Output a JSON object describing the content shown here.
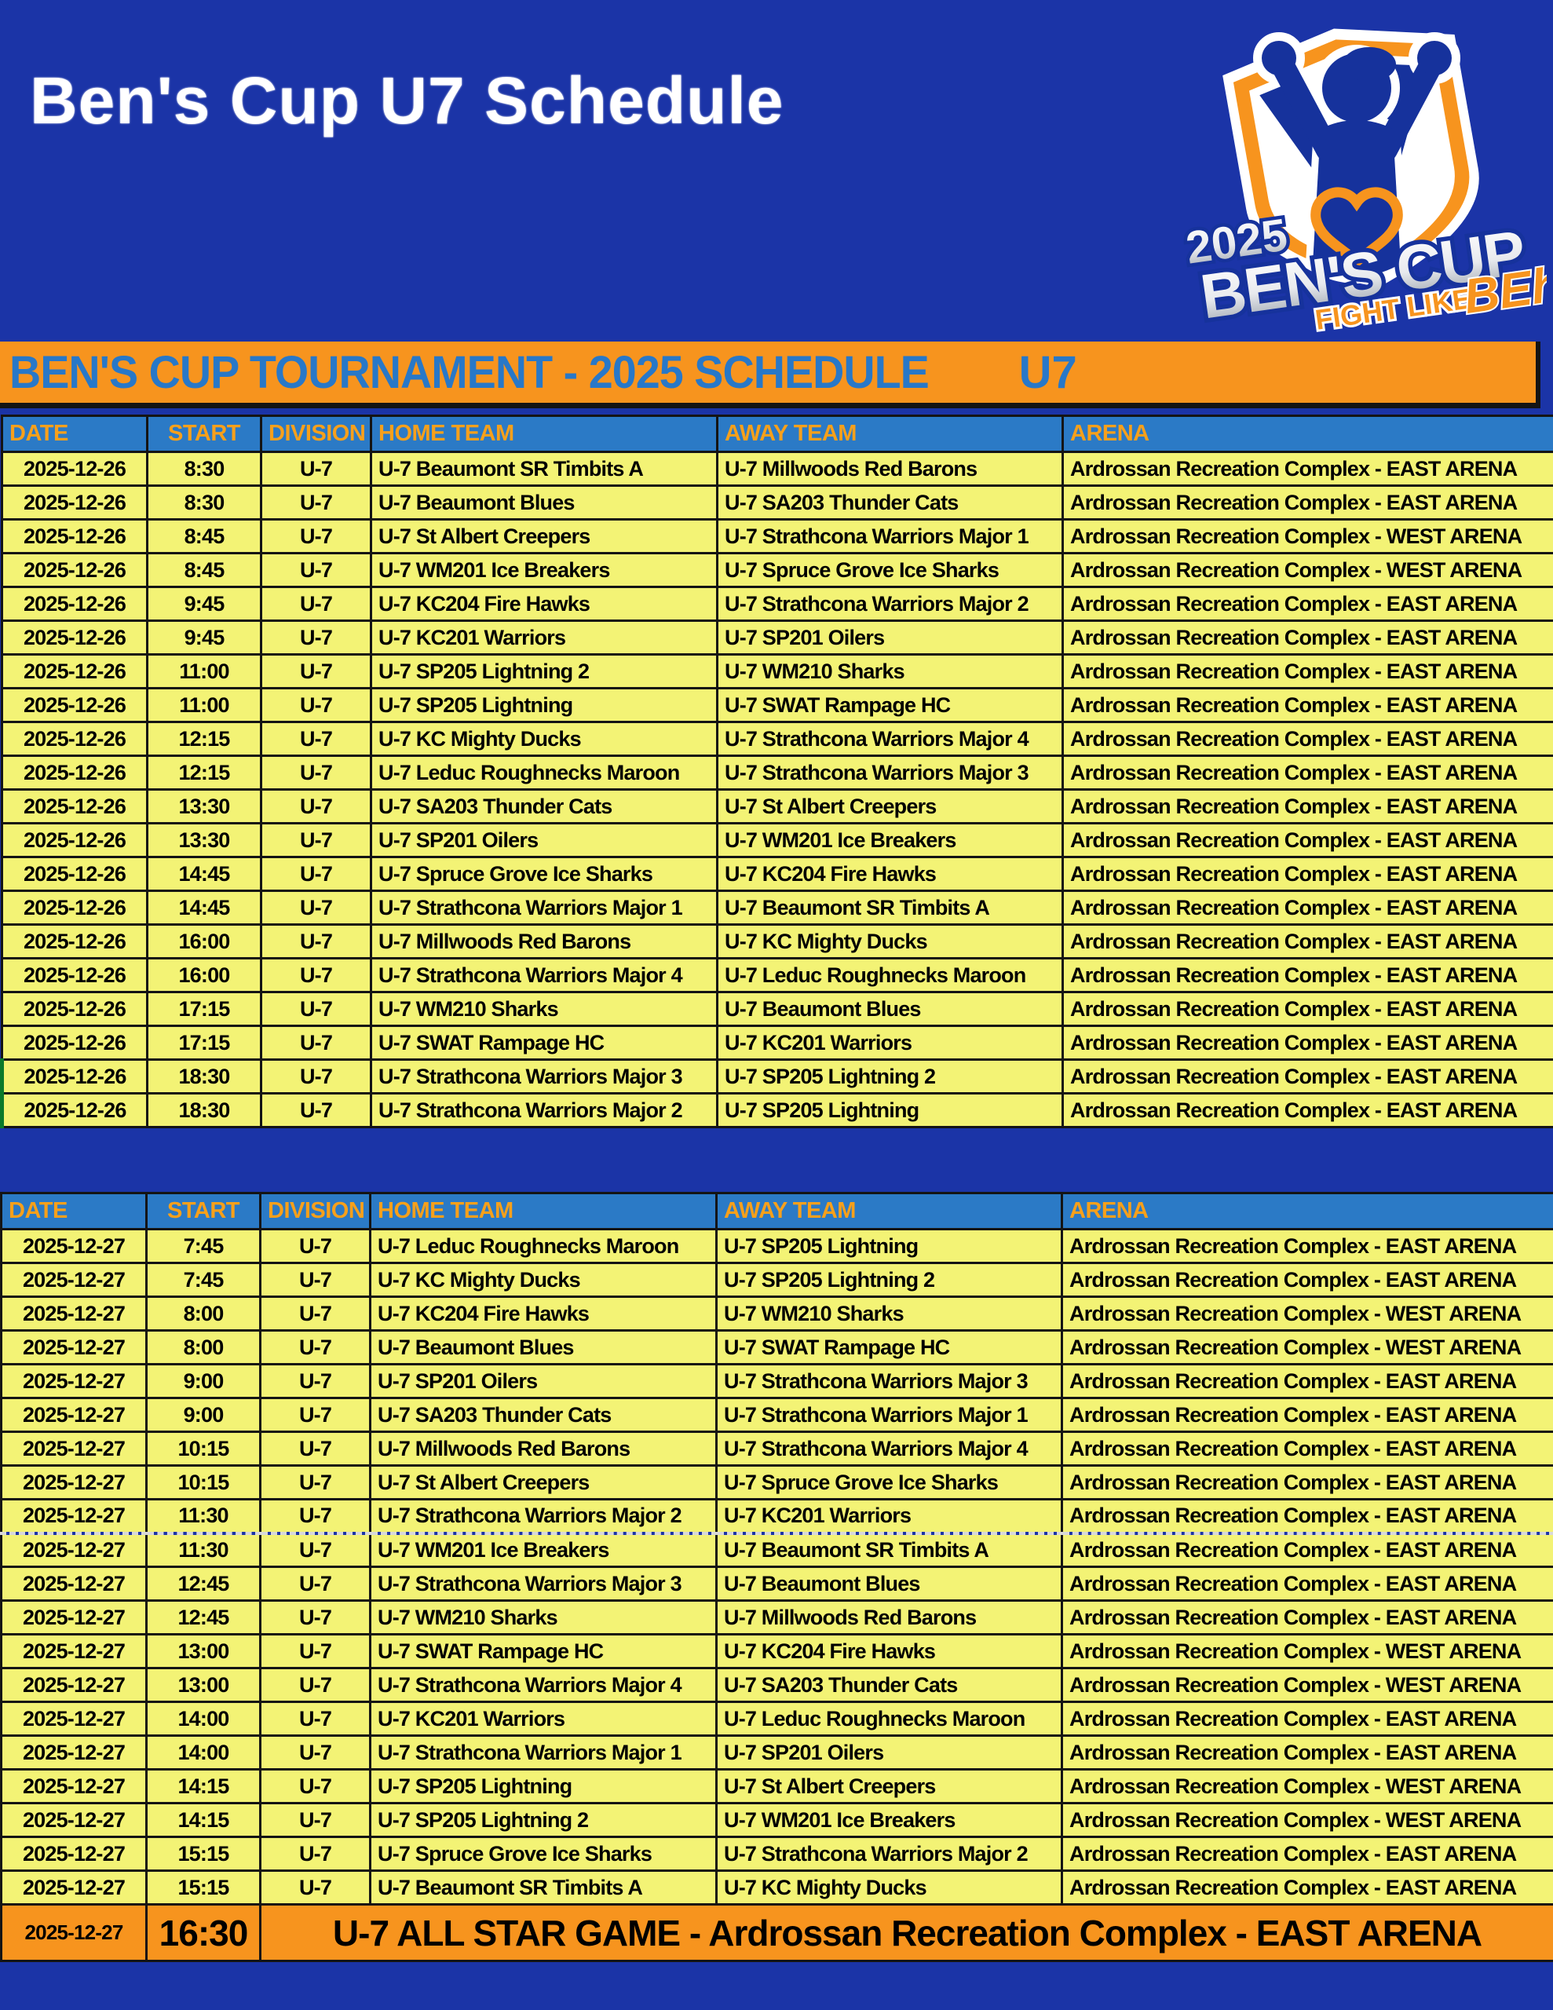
{
  "title": "Ben's Cup U7 Schedule",
  "logo": {
    "year": "2025",
    "name": "BEN'S CUP",
    "tagline": "FIGHT LIKE",
    "signature": "BEh"
  },
  "banner": {
    "title": "BEN'S CUP TOURNAMENT - 2025 SCHEDULE",
    "division": "U7"
  },
  "columns": [
    "DATE",
    "START",
    "DIVISION",
    "HOME TEAM",
    "AWAY TEAM",
    "ARENA"
  ],
  "tables": [
    {
      "name": "day1",
      "green_edge_rows": [
        18,
        19
      ],
      "rows": [
        [
          "2025-12-26",
          "8:30",
          "U-7",
          "U-7 Beaumont SR Timbits A",
          "U-7 Millwoods Red Barons",
          "Ardrossan Recreation Complex - EAST ARENA"
        ],
        [
          "2025-12-26",
          "8:30",
          "U-7",
          "U-7 Beaumont Blues",
          "U-7 SA203 Thunder Cats",
          "Ardrossan Recreation Complex - EAST ARENA"
        ],
        [
          "2025-12-26",
          "8:45",
          "U-7",
          "U-7 St Albert Creepers",
          "U-7 Strathcona Warriors Major 1",
          "Ardrossan Recreation Complex - WEST ARENA"
        ],
        [
          "2025-12-26",
          "8:45",
          "U-7",
          "U-7 WM201 Ice Breakers",
          "U-7 Spruce Grove Ice Sharks",
          "Ardrossan Recreation Complex - WEST ARENA"
        ],
        [
          "2025-12-26",
          "9:45",
          "U-7",
          "U-7 KC204 Fire Hawks",
          "U-7 Strathcona Warriors Major 2",
          "Ardrossan Recreation Complex - EAST ARENA"
        ],
        [
          "2025-12-26",
          "9:45",
          "U-7",
          "U-7 KC201 Warriors",
          "U-7 SP201 Oilers",
          "Ardrossan Recreation Complex - EAST ARENA"
        ],
        [
          "2025-12-26",
          "11:00",
          "U-7",
          "U-7 SP205 Lightning 2",
          "U-7 WM210 Sharks",
          "Ardrossan Recreation Complex - EAST ARENA"
        ],
        [
          "2025-12-26",
          "11:00",
          "U-7",
          "U-7 SP205 Lightning",
          "U-7 SWAT Rampage HC",
          "Ardrossan Recreation Complex - EAST ARENA"
        ],
        [
          "2025-12-26",
          "12:15",
          "U-7",
          "U-7 KC Mighty Ducks",
          "U-7 Strathcona Warriors Major 4",
          "Ardrossan Recreation Complex - EAST ARENA"
        ],
        [
          "2025-12-26",
          "12:15",
          "U-7",
          "U-7 Leduc Roughnecks Maroon",
          "U-7 Strathcona Warriors Major 3",
          "Ardrossan Recreation Complex - EAST ARENA"
        ],
        [
          "2025-12-26",
          "13:30",
          "U-7",
          "U-7 SA203 Thunder Cats",
          "U-7 St Albert Creepers",
          "Ardrossan Recreation Complex - EAST ARENA"
        ],
        [
          "2025-12-26",
          "13:30",
          "U-7",
          "U-7 SP201 Oilers",
          "U-7 WM201 Ice Breakers",
          "Ardrossan Recreation Complex - EAST ARENA"
        ],
        [
          "2025-12-26",
          "14:45",
          "U-7",
          "U-7 Spruce Grove Ice Sharks",
          "U-7 KC204 Fire Hawks",
          "Ardrossan Recreation Complex - EAST ARENA"
        ],
        [
          "2025-12-26",
          "14:45",
          "U-7",
          "U-7 Strathcona Warriors Major 1",
          "U-7 Beaumont SR Timbits A",
          "Ardrossan Recreation Complex - EAST ARENA"
        ],
        [
          "2025-12-26",
          "16:00",
          "U-7",
          "U-7 Millwoods Red Barons",
          "U-7 KC Mighty Ducks",
          "Ardrossan Recreation Complex - EAST ARENA"
        ],
        [
          "2025-12-26",
          "16:00",
          "U-7",
          "U-7 Strathcona Warriors Major 4",
          "U-7 Leduc Roughnecks Maroon",
          "Ardrossan Recreation Complex - EAST ARENA"
        ],
        [
          "2025-12-26",
          "17:15",
          "U-7",
          "U-7 WM210 Sharks",
          "U-7 Beaumont Blues",
          "Ardrossan Recreation Complex - EAST ARENA"
        ],
        [
          "2025-12-26",
          "17:15",
          "U-7",
          "U-7 SWAT Rampage HC",
          "U-7 KC201 Warriors",
          "Ardrossan Recreation Complex - EAST ARENA"
        ],
        [
          "2025-12-26",
          "18:30",
          "U-7",
          "U-7 Strathcona Warriors Major 3",
          "U-7 SP205 Lightning 2",
          "Ardrossan Recreation Complex - EAST ARENA"
        ],
        [
          "2025-12-26",
          "18:30",
          "U-7",
          "U-7 Strathcona Warriors Major 2",
          "U-7 SP205 Lightning",
          "Ardrossan Recreation Complex - EAST ARENA"
        ]
      ]
    },
    {
      "name": "day2",
      "page_break_above_row": 9,
      "rows": [
        [
          "2025-12-27",
          "7:45",
          "U-7",
          "U-7 Leduc Roughnecks Maroon",
          "U-7 SP205 Lightning",
          "Ardrossan Recreation Complex - EAST ARENA"
        ],
        [
          "2025-12-27",
          "7:45",
          "U-7",
          "U-7 KC Mighty Ducks",
          "U-7 SP205 Lightning 2",
          "Ardrossan Recreation Complex - EAST ARENA"
        ],
        [
          "2025-12-27",
          "8:00",
          "U-7",
          "U-7 KC204 Fire Hawks",
          "U-7 WM210 Sharks",
          "Ardrossan Recreation Complex - WEST ARENA"
        ],
        [
          "2025-12-27",
          "8:00",
          "U-7",
          "U-7 Beaumont Blues",
          "U-7 SWAT Rampage HC",
          "Ardrossan Recreation Complex - WEST ARENA"
        ],
        [
          "2025-12-27",
          "9:00",
          "U-7",
          "U-7 SP201 Oilers",
          "U-7 Strathcona Warriors Major 3",
          "Ardrossan Recreation Complex - EAST ARENA"
        ],
        [
          "2025-12-27",
          "9:00",
          "U-7",
          "U-7 SA203 Thunder Cats",
          "U-7 Strathcona Warriors Major 1",
          "Ardrossan Recreation Complex - EAST ARENA"
        ],
        [
          "2025-12-27",
          "10:15",
          "U-7",
          "U-7 Millwoods Red Barons",
          "U-7 Strathcona Warriors Major 4",
          "Ardrossan Recreation Complex - EAST ARENA"
        ],
        [
          "2025-12-27",
          "10:15",
          "U-7",
          "U-7 St Albert Creepers",
          "U-7 Spruce Grove Ice Sharks",
          "Ardrossan Recreation Complex - EAST ARENA"
        ],
        [
          "2025-12-27",
          "11:30",
          "U-7",
          "U-7 Strathcona Warriors Major 2",
          "U-7 KC201 Warriors",
          "Ardrossan Recreation Complex - EAST ARENA"
        ],
        [
          "2025-12-27",
          "11:30",
          "U-7",
          "U-7 WM201 Ice Breakers",
          "U-7 Beaumont SR Timbits A",
          "Ardrossan Recreation Complex - EAST ARENA"
        ],
        [
          "2025-12-27",
          "12:45",
          "U-7",
          "U-7 Strathcona Warriors Major 3",
          "U-7 Beaumont Blues",
          "Ardrossan Recreation Complex - EAST ARENA"
        ],
        [
          "2025-12-27",
          "12:45",
          "U-7",
          "U-7 WM210 Sharks",
          "U-7 Millwoods Red Barons",
          "Ardrossan Recreation Complex - EAST ARENA"
        ],
        [
          "2025-12-27",
          "13:00",
          "U-7",
          "U-7 SWAT Rampage HC",
          "U-7 KC204 Fire Hawks",
          "Ardrossan Recreation Complex - WEST ARENA"
        ],
        [
          "2025-12-27",
          "13:00",
          "U-7",
          "U-7 Strathcona Warriors Major 4",
          "U-7 SA203 Thunder Cats",
          "Ardrossan Recreation Complex - WEST ARENA"
        ],
        [
          "2025-12-27",
          "14:00",
          "U-7",
          "U-7 KC201 Warriors",
          "U-7 Leduc Roughnecks Maroon",
          "Ardrossan Recreation Complex - EAST ARENA"
        ],
        [
          "2025-12-27",
          "14:00",
          "U-7",
          "U-7 Strathcona Warriors Major 1",
          "U-7 SP201 Oilers",
          "Ardrossan Recreation Complex - EAST ARENA"
        ],
        [
          "2025-12-27",
          "14:15",
          "U-7",
          "U-7 SP205 Lightning",
          "U-7 St Albert Creepers",
          "Ardrossan Recreation Complex - WEST ARENA"
        ],
        [
          "2025-12-27",
          "14:15",
          "U-7",
          "U-7 SP205 Lightning 2",
          "U-7 WM201 Ice Breakers",
          "Ardrossan Recreation Complex - WEST ARENA"
        ],
        [
          "2025-12-27",
          "15:15",
          "U-7",
          "U-7 Spruce Grove Ice Sharks",
          "U-7 Strathcona Warriors Major 2",
          "Ardrossan Recreation Complex - EAST ARENA"
        ],
        [
          "2025-12-27",
          "15:15",
          "U-7",
          "U-7 Beaumont SR Timbits A",
          "U-7 KC Mighty Ducks",
          "Ardrossan Recreation Complex - EAST ARENA"
        ]
      ],
      "allstar": {
        "date": "2025-12-27",
        "start": "16:30",
        "label": "U-7 ALL STAR GAME - Ardrossan Recreation Complex - EAST ARENA"
      }
    }
  ],
  "colors": {
    "page_blue": "#1b34a7",
    "accent_orange": "#f7941e",
    "header_blue": "#2b7ac6",
    "header_text_orange": "#f7a01b",
    "banner_text_blue": "#2878c8",
    "row_yellow": "#f3f375",
    "border_black": "#141414",
    "title_white": "#ffffff"
  }
}
